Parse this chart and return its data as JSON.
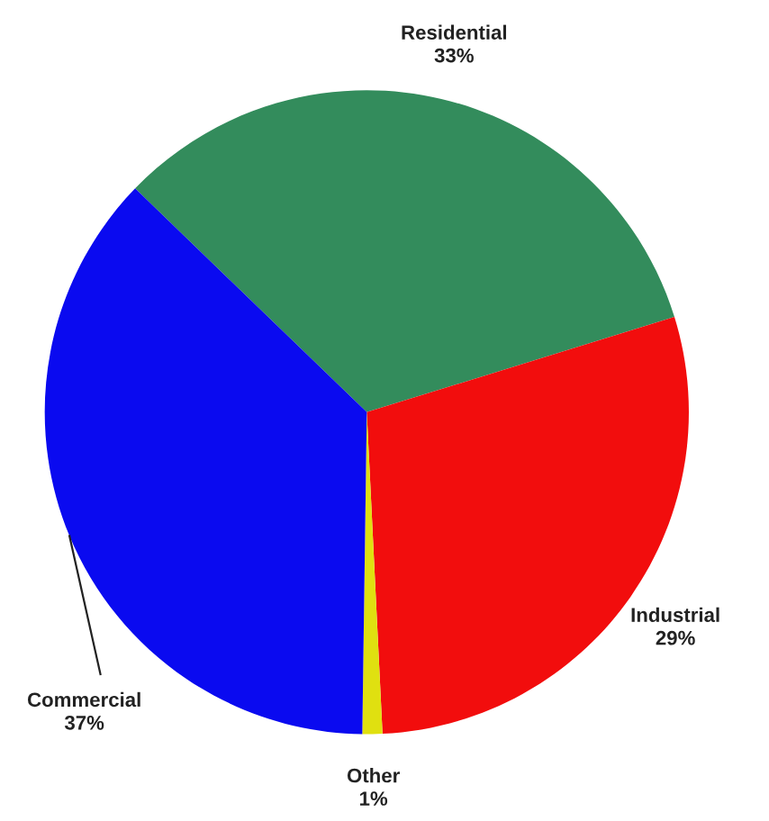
{
  "chart_data": {
    "type": "pie",
    "categories": [
      "Residential",
      "Industrial",
      "Other",
      "Commercial"
    ],
    "values": [
      33,
      29,
      1,
      37
    ],
    "value_labels": [
      "33%",
      "29%",
      "1%",
      "37%"
    ],
    "colors": [
      "#338c5c",
      "#f20d0d",
      "#e0e010",
      "#0a0af0"
    ]
  }
}
